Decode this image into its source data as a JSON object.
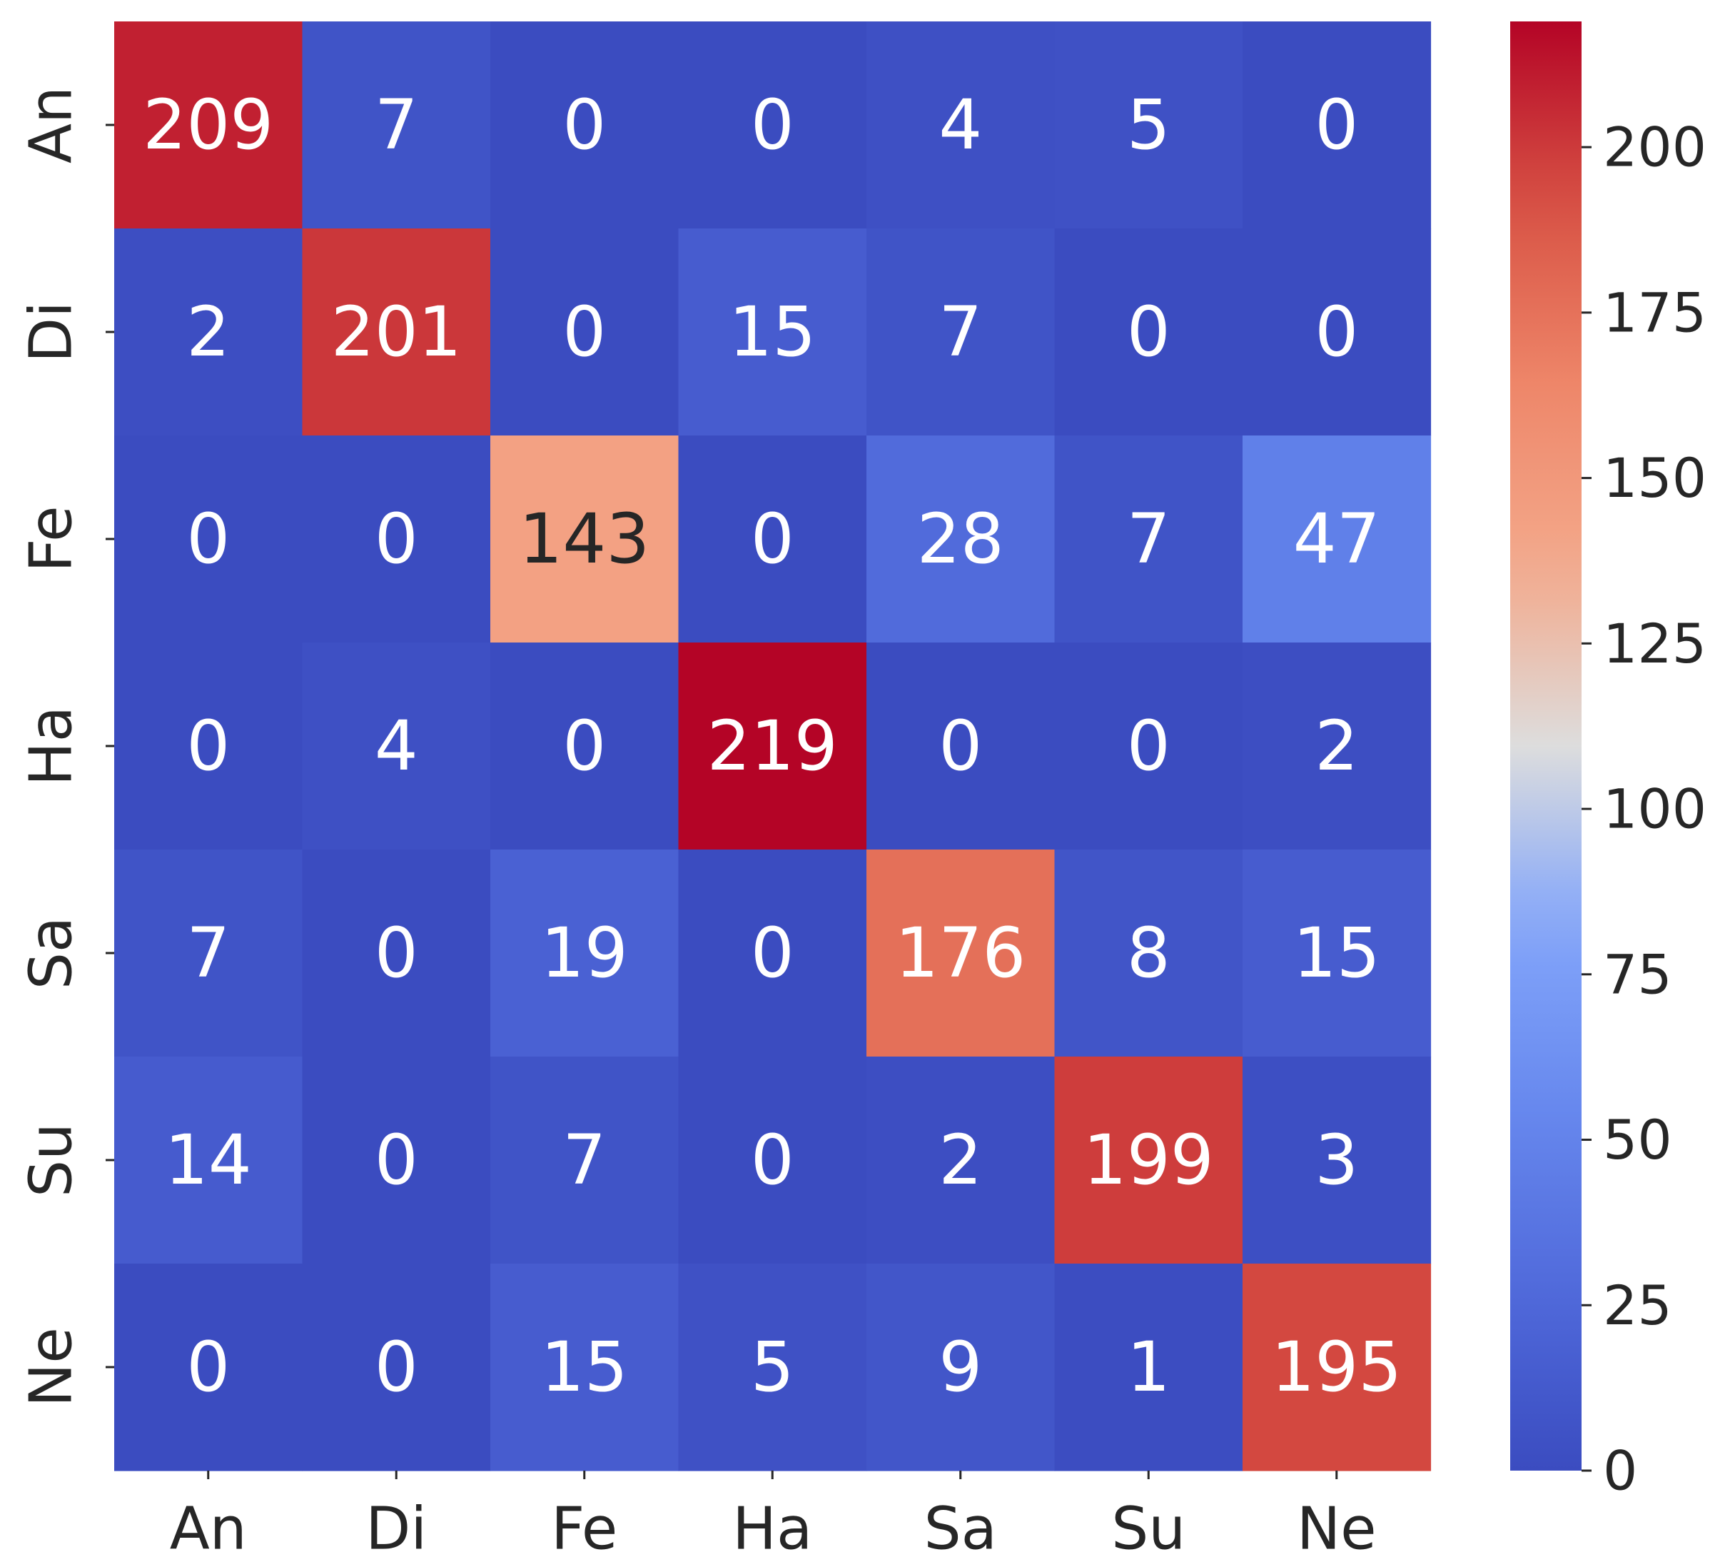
{
  "chart_data": {
    "type": "heatmap",
    "title": "",
    "xlabel": "",
    "ylabel": "",
    "x_categories": [
      "An",
      "Di",
      "Fe",
      "Ha",
      "Sa",
      "Su",
      "Ne"
    ],
    "y_categories": [
      "An",
      "Di",
      "Fe",
      "Ha",
      "Sa",
      "Su",
      "Ne"
    ],
    "values": [
      [
        209,
        7,
        0,
        0,
        4,
        5,
        0
      ],
      [
        2,
        201,
        0,
        15,
        7,
        0,
        0
      ],
      [
        0,
        0,
        143,
        0,
        28,
        7,
        47
      ],
      [
        0,
        4,
        0,
        219,
        0,
        0,
        2
      ],
      [
        7,
        0,
        19,
        0,
        176,
        8,
        15
      ],
      [
        14,
        0,
        7,
        0,
        2,
        199,
        3
      ],
      [
        0,
        0,
        15,
        5,
        9,
        1,
        195
      ]
    ],
    "colormap": "coolwarm",
    "vmin": 0,
    "vmax": 219,
    "colorbar_ticks": [
      0,
      25,
      50,
      75,
      100,
      125,
      150,
      175,
      200
    ],
    "colors": {
      "low": "#3b4cc0",
      "mid": "#dddddd",
      "high": "#b40426",
      "text_light": "#ffffff",
      "text_dark": "#262626"
    }
  }
}
